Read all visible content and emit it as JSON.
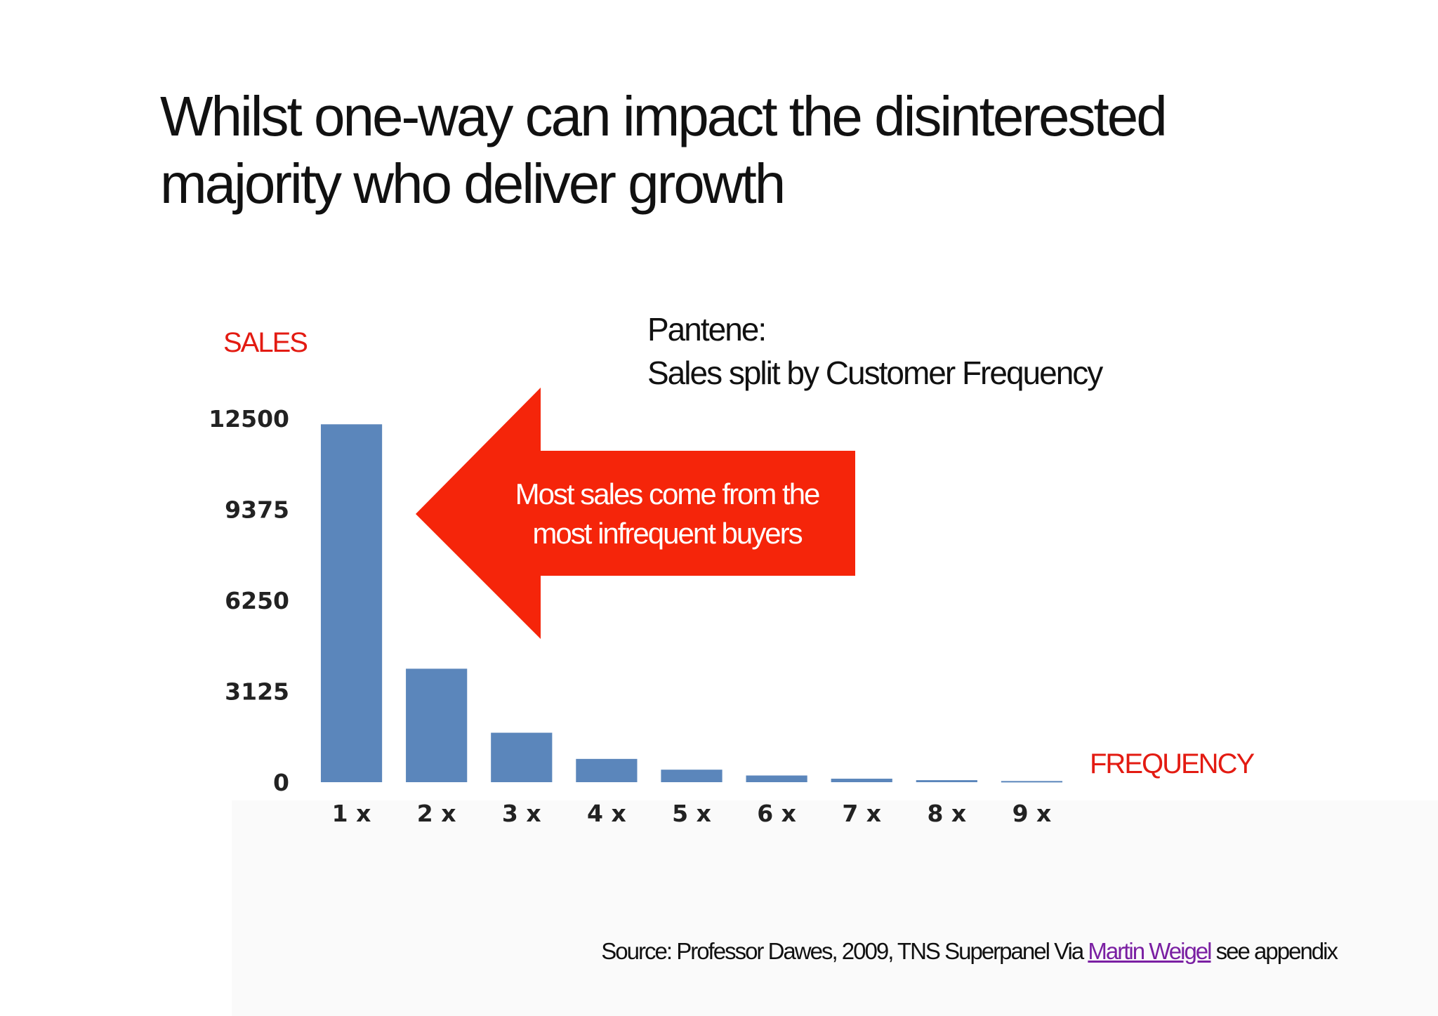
{
  "slide": {
    "title_line1": "Whilst one-way can impact the disinterested",
    "title_line2": "majority who deliver growth"
  },
  "callout": {
    "line1": "Most sales come from the",
    "line2": "most infrequent buyers",
    "color": "#f5250a"
  },
  "source": {
    "prefix": "Source:  Professor Dawes, 2009, TNS Superpanel Via ",
    "link": "Martin Weigel",
    "suffix": " see appendix"
  },
  "chart_data": {
    "type": "bar",
    "title_line1": "Pantene:",
    "title_line2": "Sales split by Customer Frequency",
    "xlabel": "FREQUENCY",
    "ylabel": "SALES",
    "categories": [
      "1 x",
      "2 x",
      "3 x",
      "4 x",
      "5 x",
      "6 x",
      "7 x",
      "8 x",
      "9 x"
    ],
    "values": [
      12300,
      3900,
      1700,
      800,
      430,
      230,
      120,
      70,
      40
    ],
    "yticks": [
      "0",
      "3125",
      "6250",
      "9375",
      "12500"
    ],
    "ylim": [
      0,
      12500
    ],
    "bar_color": "#5b86bb",
    "axis_label_color": "#e31b12",
    "grid": false
  }
}
